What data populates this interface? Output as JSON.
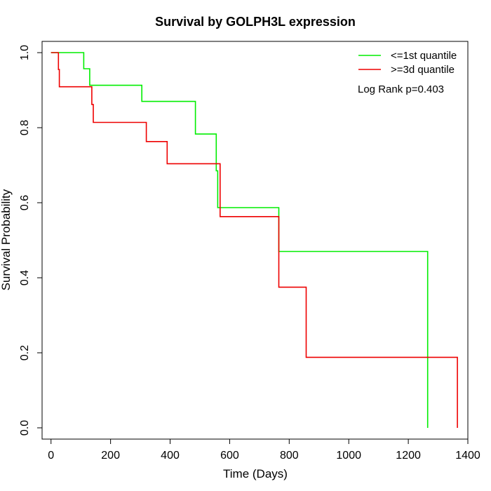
{
  "chart_data": {
    "type": "line",
    "title": "Survival by GOLPH3L expression",
    "xlabel": "Time (Days)",
    "ylabel": "Survival Probability",
    "xlim": [
      -30,
      1400
    ],
    "ylim": [
      -0.03,
      1.03
    ],
    "xticks": [
      0,
      200,
      400,
      600,
      800,
      1000,
      1200,
      1400
    ],
    "yticks": [
      0.0,
      0.2,
      0.4,
      0.6,
      0.8,
      1.0
    ],
    "xtick_labels": [
      "0",
      "200",
      "400",
      "600",
      "800",
      "1000",
      "1200",
      "1400"
    ],
    "ytick_labels": [
      "0.0",
      "0.2",
      "0.4",
      "0.6",
      "0.8",
      "1.0"
    ],
    "legend_position": "top-right",
    "annotation": "Log Rank p=0.403",
    "series": [
      {
        "name": "<=1st quantile",
        "color": "#00ee00",
        "step_points": [
          [
            0,
            1.0
          ],
          [
            110,
            1.0
          ],
          [
            110,
            0.957
          ],
          [
            130,
            0.957
          ],
          [
            130,
            0.913
          ],
          [
            305,
            0.913
          ],
          [
            305,
            0.87
          ],
          [
            485,
            0.87
          ],
          [
            485,
            0.783
          ],
          [
            555,
            0.783
          ],
          [
            555,
            0.685
          ],
          [
            560,
            0.685
          ],
          [
            560,
            0.587
          ],
          [
            765,
            0.587
          ],
          [
            765,
            0.47
          ],
          [
            1265,
            0.47
          ],
          [
            1265,
            0.0
          ]
        ]
      },
      {
        "name": ">=3d quantile",
        "color": "#ee0000",
        "step_points": [
          [
            0,
            1.0
          ],
          [
            25,
            1.0
          ],
          [
            25,
            0.955
          ],
          [
            28,
            0.955
          ],
          [
            28,
            0.909
          ],
          [
            137,
            0.909
          ],
          [
            137,
            0.862
          ],
          [
            142,
            0.862
          ],
          [
            142,
            0.814
          ],
          [
            320,
            0.814
          ],
          [
            320,
            0.763
          ],
          [
            390,
            0.763
          ],
          [
            390,
            0.704
          ],
          [
            568,
            0.704
          ],
          [
            568,
            0.563
          ],
          [
            765,
            0.563
          ],
          [
            765,
            0.375
          ],
          [
            857,
            0.375
          ],
          [
            857,
            0.188
          ],
          [
            1365,
            0.188
          ],
          [
            1365,
            0.0
          ]
        ]
      }
    ]
  }
}
